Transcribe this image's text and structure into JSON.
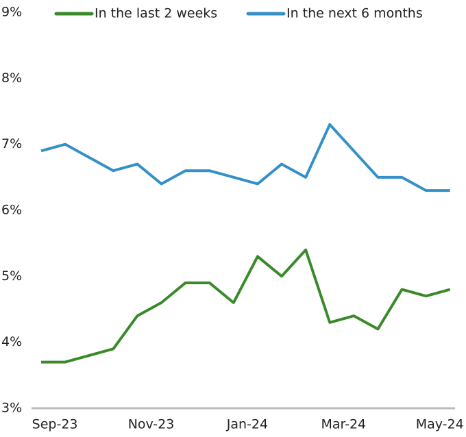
{
  "chart_data": {
    "type": "line",
    "categories": [
      null,
      "Sep-23",
      null,
      null,
      null,
      "Nov-23",
      null,
      null,
      null,
      "Jan-24",
      null,
      null,
      null,
      "Mar-24",
      null,
      null,
      null,
      "May-24"
    ],
    "series": [
      {
        "name": "In the last 2 weeks",
        "color": "#3a8a2a",
        "values": [
          3.7,
          3.7,
          3.8,
          3.9,
          4.4,
          4.6,
          4.9,
          4.9,
          4.6,
          5.3,
          5.0,
          5.4,
          4.3,
          4.4,
          4.2,
          4.8,
          4.7,
          4.8
        ]
      },
      {
        "name": "In the next 6 months",
        "color": "#3590c8",
        "values": [
          6.9,
          7.0,
          6.8,
          6.6,
          6.7,
          6.4,
          6.6,
          6.6,
          6.5,
          6.4,
          6.7,
          6.5,
          7.3,
          6.9,
          6.5,
          6.5,
          6.3,
          6.3
        ]
      }
    ],
    "ylim": [
      3,
      9
    ],
    "yticks": [
      {
        "value": 3,
        "label": "3%"
      },
      {
        "value": 4,
        "label": "4%"
      },
      {
        "value": 5,
        "label": "5%"
      },
      {
        "value": 6,
        "label": "6%"
      },
      {
        "value": 7,
        "label": "7%"
      },
      {
        "value": 8,
        "label": "8%"
      },
      {
        "value": 9,
        "label": "9%"
      }
    ],
    "grid": false
  }
}
